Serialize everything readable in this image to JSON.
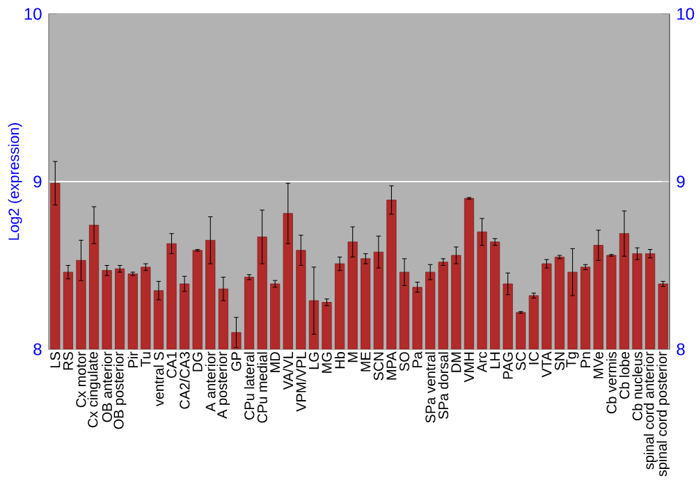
{
  "chart_data": {
    "type": "bar",
    "ylabel": "Log2 (expression)",
    "categories": [
      "LS",
      "RS",
      "Cx motor",
      "Cx cingulate",
      "OB anterior",
      "OB posterior",
      "Pir",
      "Tu",
      "ventral S",
      "CA1",
      "CA2/CA3",
      "DG",
      "A anterior",
      "A posterior",
      "GP",
      "CPu lateral",
      "CPu medial",
      "MD",
      "VA/VL",
      "VPM/VPL",
      "LG",
      "MG",
      "Hb",
      "M",
      "ME",
      "SCN",
      "MPA",
      "SO",
      "Pa",
      "SPa ventral",
      "SPa dorsal",
      "DM",
      "VMH",
      "Arc",
      "LH",
      "PAG",
      "SC",
      "IC",
      "VTA",
      "SN",
      "Tg",
      "Pn",
      "MVe",
      "Cb vermis",
      "Cb lobe",
      "Cb nucleus",
      "spinal cord anterior",
      "spinal cord posterior"
    ],
    "values": [
      8.99,
      8.46,
      8.53,
      8.74,
      8.47,
      8.48,
      8.45,
      8.49,
      8.35,
      8.63,
      8.39,
      8.59,
      8.65,
      8.36,
      8.1,
      8.43,
      8.67,
      8.39,
      8.81,
      8.59,
      8.29,
      8.28,
      8.51,
      8.64,
      8.54,
      8.58,
      8.89,
      8.46,
      8.37,
      8.46,
      8.52,
      8.56,
      8.9,
      8.7,
      8.64,
      8.39,
      8.22,
      8.32,
      8.51,
      8.55,
      8.46,
      8.49,
      8.62,
      8.56,
      8.69,
      8.57,
      8.57,
      8.39
    ],
    "errors": [
      0.13,
      0.04,
      0.12,
      0.11,
      0.03,
      0.02,
      0.01,
      0.02,
      0.055,
      0.06,
      0.045,
      0.005,
      0.14,
      0.07,
      0.09,
      0.015,
      0.16,
      0.02,
      0.18,
      0.09,
      0.2,
      0.02,
      0.04,
      0.09,
      0.03,
      0.095,
      0.085,
      0.08,
      0.03,
      0.045,
      0.02,
      0.05,
      0.005,
      0.08,
      0.02,
      0.065,
      0.005,
      0.015,
      0.025,
      0.01,
      0.14,
      0.015,
      0.09,
      0.005,
      0.135,
      0.035,
      0.025,
      0.015
    ],
    "color": "#b22a2a",
    "ylim": [
      8,
      10
    ],
    "yticks": [
      8,
      9,
      10
    ],
    "y2lim": [
      8,
      10
    ],
    "y2ticks": [
      8,
      9,
      10
    ],
    "grid": "y"
  }
}
